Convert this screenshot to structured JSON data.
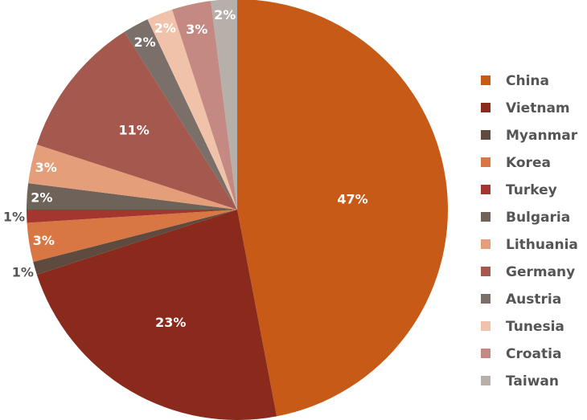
{
  "chart_data": {
    "type": "pie",
    "start_angle_deg": 0,
    "direction": "clockwise",
    "legend_position": "right",
    "slices": [
      {
        "name": "China",
        "value": 47,
        "label": "47%",
        "color": "#C85A17",
        "label_color": "#ffffff"
      },
      {
        "name": "Vietnam",
        "value": 23,
        "label": "23%",
        "color": "#8A2A1C",
        "label_color": "#ffffff"
      },
      {
        "name": "Myanmar",
        "value": 1,
        "label": "1%",
        "color": "#5E4A3E",
        "label_color": "#555555"
      },
      {
        "name": "Korea",
        "value": 3,
        "label": "3%",
        "color": "#D87743",
        "label_color": "#ffffff"
      },
      {
        "name": "Turkey",
        "value": 1,
        "label": "1%",
        "color": "#A33730",
        "label_color": "#555555"
      },
      {
        "name": "Bulgaria",
        "value": 2,
        "label": "2%",
        "color": "#6F6259",
        "label_color": "#ffffff"
      },
      {
        "name": "Lithuania",
        "value": 3,
        "label": "3%",
        "color": "#E49E7A",
        "label_color": "#ffffff"
      },
      {
        "name": "Germany",
        "value": 11,
        "label": "11%",
        "color": "#A4584E",
        "label_color": "#ffffff"
      },
      {
        "name": "Austria",
        "value": 2,
        "label": "2%",
        "color": "#7A7069",
        "label_color": "#ffffff"
      },
      {
        "name": "Tunesia",
        "value": 2,
        "label": "2%",
        "color": "#F1C2AA",
        "label_color": "#ffffff"
      },
      {
        "name": "Croatia",
        "value": 3,
        "label": "3%",
        "color": "#C48982",
        "label_color": "#ffffff"
      },
      {
        "name": "Taiwan",
        "value": 2,
        "label": "2%",
        "color": "#B7AFAA",
        "label_color": "#ffffff"
      }
    ]
  }
}
